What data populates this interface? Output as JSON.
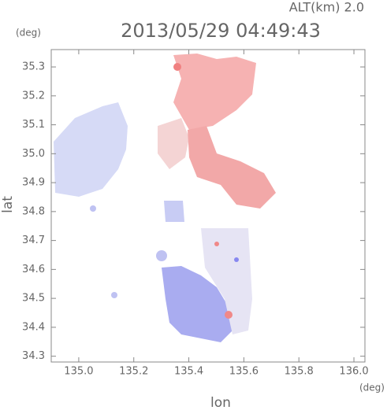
{
  "chart_data": {
    "type": "map",
    "title": "2013/05/29 04:49:43",
    "subtitle": "ALT(km) 2.0",
    "y_unit": "(deg)",
    "x_unit": "(deg)",
    "x_label": "lon",
    "y_label": "lat",
    "xlim": [
      134.9,
      136.04
    ],
    "ylim": [
      34.28,
      35.36
    ],
    "xticks": [
      {
        "value": 135,
        "label": "135.0"
      },
      135.2,
      135.4,
      135.6,
      135.8,
      {
        "value": 136,
        "label": "136.0"
      }
    ],
    "yticks": [
      34.3,
      34.4,
      34.5,
      34.6,
      34.7,
      34.8,
      34.9,
      {
        "value": 35,
        "label": "35.0"
      },
      35.1,
      35.2,
      35.3
    ]
  }
}
